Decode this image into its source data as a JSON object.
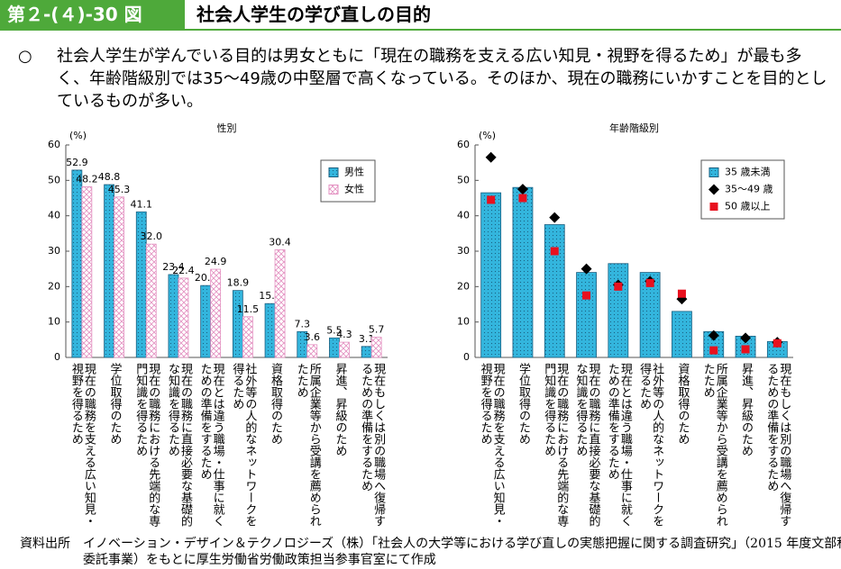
{
  "header": {
    "figure_number": "第２-(４)-30 図",
    "title": "社会人学生の学び直しの目的"
  },
  "summary": {
    "marker": "○",
    "text": "社会人学生が学んでいる目的は男女ともに「現在の職務を支える広い知見・視野を得るため」が最も多く、年齢階級別では35～49歳の中堅層で高くなっている。そのほか、現在の職務にいかすことを目的としているものが多い。"
  },
  "chart_data": [
    {
      "type": "bar",
      "title": "性別",
      "unit_label": "(%)",
      "categories": [
        "現在の職務を支える広い知見・視野を得るため",
        "学位取得のため",
        "現在の職務における先端的な専門知識を得るため",
        "現在の職務に直接必要な基礎的な知識を得るため",
        "現在とは違う職場・仕事に就くための準備をするため",
        "社外等の人的なネットワークを得るため",
        "資格取得のため",
        "所属企業等から受講を薦められたため",
        "昇進、昇級のため",
        "現在もしくは別の職場へ復帰するための準備をするため"
      ],
      "series": [
        {
          "name": "男性",
          "color": "#33b5dd",
          "marker": "bar",
          "values": [
            52.9,
            48.8,
            41.1,
            23.4,
            20.3,
            18.9,
            15.2,
            7.3,
            5.5,
            3.1
          ],
          "value_labels": [
            "52.9",
            "48.8",
            "41.1",
            "23.4",
            "20.3",
            "18.9",
            "15.2",
            "7.3",
            "5.5",
            "3.1"
          ]
        },
        {
          "name": "女性",
          "color": "#e38fc0",
          "marker": "bar",
          "values": [
            48.2,
            45.3,
            32.0,
            22.4,
            24.9,
            11.5,
            30.4,
            3.6,
            4.3,
            5.7
          ],
          "value_labels": [
            "48.2",
            "45.3",
            "32.0",
            "22.4",
            "24.9",
            "11.5",
            "30.4",
            "3.6",
            "4.3",
            "5.7"
          ]
        }
      ],
      "ylim": [
        0,
        60
      ],
      "yticks": [
        0,
        10,
        20,
        30,
        40,
        50,
        60
      ],
      "legend": "top-right"
    },
    {
      "type": "bar",
      "title": "年齢階級別",
      "unit_label": "(%)",
      "categories": [
        "現在の職務を支える広い知見・視野を得るため",
        "学位取得のため",
        "現在の職務における先端的な専門知識を得るため",
        "現在の職務に直接必要な基礎的な知識を得るため",
        "現在とは違う職場・仕事に就くための準備をするため",
        "社外等の人的なネットワークを得るため",
        "資格取得のため",
        "所属企業等から受講を薦められたため",
        "昇進、昇級のため",
        "現在もしくは別の職場へ復帰するための準備をするため"
      ],
      "series": [
        {
          "name": "35 歳未満",
          "color": "#33b5dd",
          "marker": "bar",
          "values": [
            46.5,
            48,
            37.5,
            24,
            26.5,
            24,
            13,
            7.3,
            6,
            4.5
          ]
        },
        {
          "name": "35～49 歳",
          "color": "#000000",
          "marker": "diamond",
          "values": [
            56.5,
            47.5,
            39.5,
            25,
            20.5,
            21.5,
            16.5,
            6.2,
            5.5,
            4.3
          ]
        },
        {
          "name": "50 歳以上",
          "color": "#e8101e",
          "marker": "square",
          "values": [
            44.5,
            45,
            30,
            17.5,
            20,
            21,
            18,
            2,
            2.3,
            4
          ]
        }
      ],
      "ylim": [
        0,
        60
      ],
      "yticks": [
        0,
        10,
        20,
        30,
        40,
        50,
        60
      ],
      "legend": "top-right"
    }
  ],
  "source": "資料出所　イノベーション・デザイン＆テクノロジーズ（株）「社会人の大学等における学び直しの実態把握に関する調査研究」（2015 年度文部科学省委託事業）をもとに厚生労働省労働政策担当参事官室にて作成"
}
